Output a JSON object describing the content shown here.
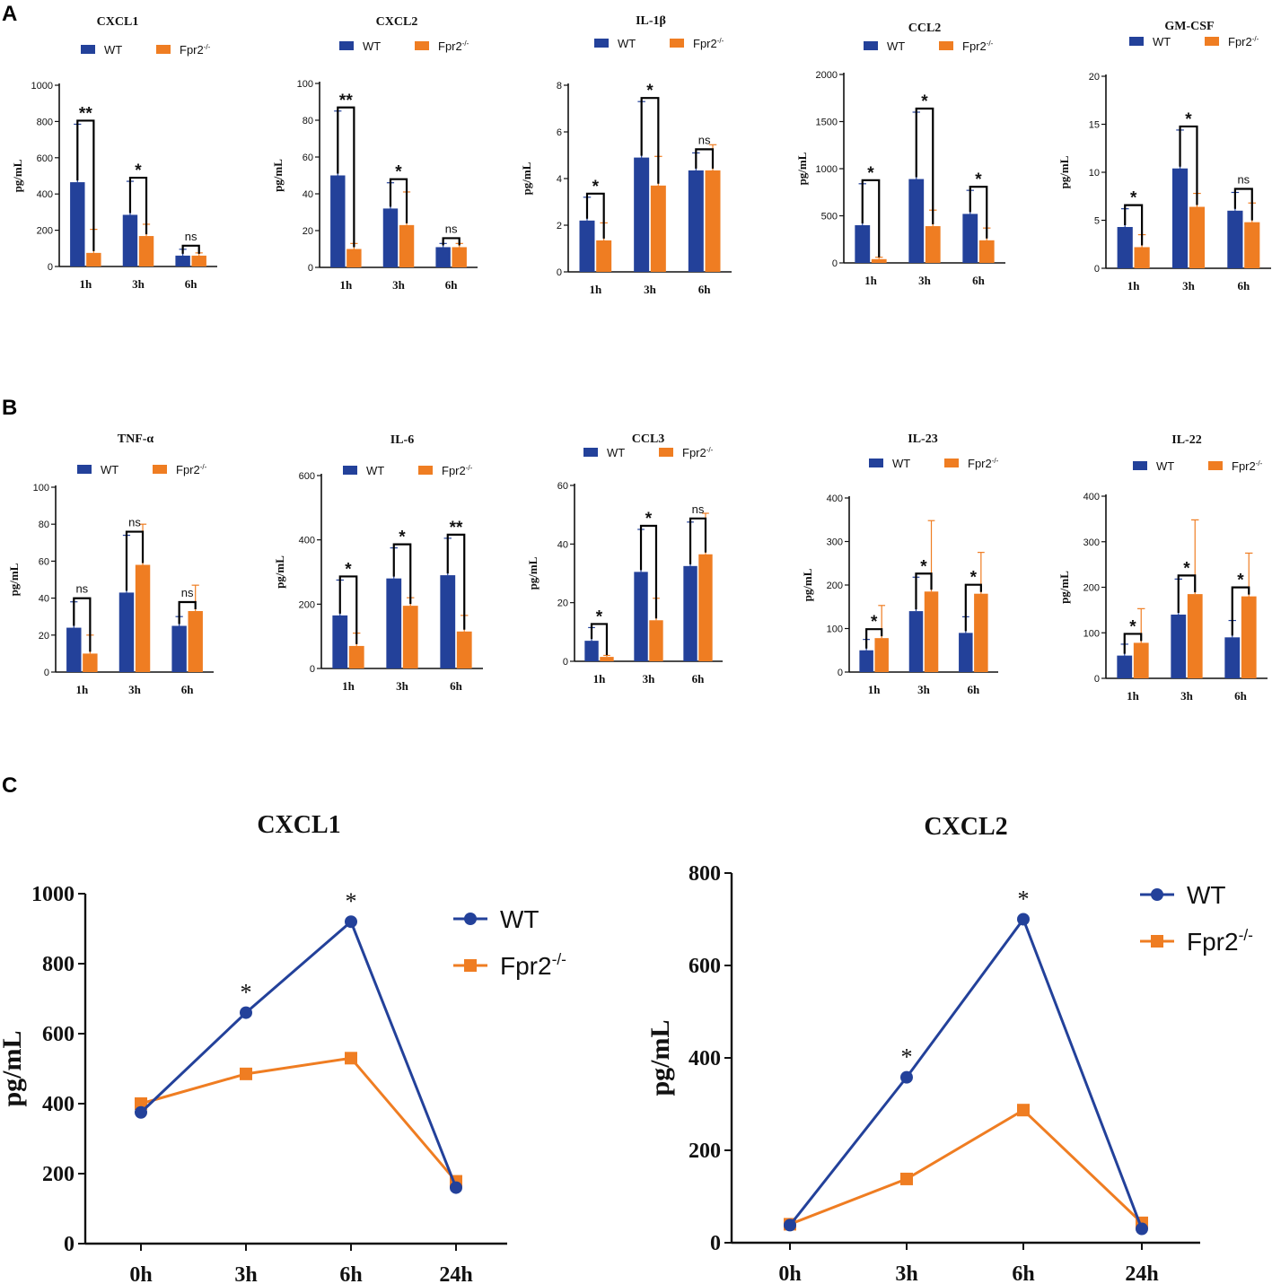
{
  "panels": [
    {
      "label": "A"
    },
    {
      "label": "B"
    },
    {
      "label": "C"
    }
  ],
  "colors": {
    "wt": "#23419A",
    "ko": "#EF7D22",
    "axis": "#111111"
  },
  "chart_data": [
    {
      "type": "bar",
      "panel": "A",
      "title": "CXCL1",
      "ylabel": "pg/mL",
      "categories": [
        "1h",
        "3h",
        "6h"
      ],
      "ylim": [
        0,
        1000
      ],
      "yticks": [
        0,
        200,
        400,
        600,
        800,
        1000
      ],
      "series": [
        {
          "name": "WT",
          "values": [
            465,
            285,
            60
          ],
          "errors": [
            320,
            185,
            35
          ]
        },
        {
          "name": "Fpr2-/-",
          "values": [
            75,
            168,
            60
          ],
          "errors": [
            130,
            65,
            15
          ]
        }
      ],
      "significance": [
        "**",
        "*",
        "ns"
      ]
    },
    {
      "type": "bar",
      "panel": "A",
      "title": "CXCL2",
      "ylabel": "pg/mL",
      "categories": [
        "1h",
        "3h",
        "6h"
      ],
      "ylim": [
        0,
        100
      ],
      "yticks": [
        0,
        20,
        40,
        60,
        80,
        100
      ],
      "series": [
        {
          "name": "WT",
          "values": [
            50,
            32,
            11
          ],
          "errors": [
            35,
            14,
            2
          ]
        },
        {
          "name": "Fpr2-/-",
          "values": [
            10,
            23,
            11
          ],
          "errors": [
            3,
            18,
            2
          ]
        }
      ],
      "significance": [
        "**",
        "*",
        "ns"
      ]
    },
    {
      "type": "bar",
      "panel": "A",
      "title": "IL-1β",
      "ylabel": "pg/mL",
      "categories": [
        "1h",
        "3h",
        "6h"
      ],
      "ylim": [
        0,
        8
      ],
      "yticks": [
        0,
        2,
        4,
        6,
        8
      ],
      "series": [
        {
          "name": "WT",
          "values": [
            2.2,
            4.9,
            4.35
          ],
          "errors": [
            1.0,
            2.4,
            0.75
          ]
        },
        {
          "name": "Fpr2-/-",
          "values": [
            1.35,
            3.7,
            4.35
          ],
          "errors": [
            0.75,
            1.25,
            1.1
          ]
        }
      ],
      "significance": [
        "*",
        "*",
        "ns"
      ]
    },
    {
      "type": "bar",
      "panel": "A",
      "title": "CCL2",
      "ylabel": "pg/mL",
      "categories": [
        "1h",
        "3h",
        "6h"
      ],
      "ylim": [
        0,
        2000
      ],
      "yticks": [
        0,
        500,
        1000,
        1500,
        2000
      ],
      "series": [
        {
          "name": "WT",
          "values": [
            400,
            890,
            520
          ],
          "errors": [
            440,
            710,
            250
          ]
        },
        {
          "name": "Fpr2-/-",
          "values": [
            40,
            390,
            240
          ],
          "errors": [
            20,
            170,
            130
          ]
        }
      ],
      "significance": [
        "*",
        "*",
        "*"
      ]
    },
    {
      "type": "bar",
      "panel": "A",
      "title": "GM-CSF",
      "ylabel": "pg/mL",
      "categories": [
        "1h",
        "3h",
        "6h"
      ],
      "ylim": [
        0,
        20
      ],
      "yticks": [
        0,
        5,
        10,
        15,
        20
      ],
      "series": [
        {
          "name": "WT",
          "values": [
            4.3,
            10.4,
            6.0
          ],
          "errors": [
            1.9,
            4.0,
            1.9
          ]
        },
        {
          "name": "Fpr2-/-",
          "values": [
            2.2,
            6.4,
            4.8
          ],
          "errors": [
            1.3,
            1.4,
            2.0
          ]
        }
      ],
      "significance": [
        "*",
        "*",
        "ns"
      ]
    },
    {
      "type": "bar",
      "panel": "B",
      "title": "TNF-α",
      "ylabel": "pg/mL",
      "categories": [
        "1h",
        "3h",
        "6h"
      ],
      "ylim": [
        0,
        100
      ],
      "yticks": [
        0,
        20,
        40,
        60,
        80,
        100
      ],
      "series": [
        {
          "name": "WT",
          "values": [
            24,
            43,
            25
          ],
          "errors": [
            14,
            31,
            5
          ]
        },
        {
          "name": "Fpr2-/-",
          "values": [
            10,
            58,
            33
          ],
          "errors": [
            10,
            22,
            14
          ]
        }
      ],
      "significance": [
        "ns",
        "ns",
        "ns"
      ]
    },
    {
      "type": "bar",
      "panel": "B",
      "title": "IL-6",
      "ylabel": "pg/mL",
      "categories": [
        "1h",
        "3h",
        "6h"
      ],
      "ylim": [
        0,
        600
      ],
      "yticks": [
        0,
        200,
        400,
        600
      ],
      "series": [
        {
          "name": "WT",
          "values": [
            165,
            280,
            290
          ],
          "errors": [
            110,
            95,
            115
          ]
        },
        {
          "name": "Fpr2-/-",
          "values": [
            70,
            195,
            115
          ],
          "errors": [
            40,
            25,
            50
          ]
        }
      ],
      "significance": [
        "*",
        "*",
        "**"
      ]
    },
    {
      "type": "bar",
      "panel": "B",
      "title": "CCL3",
      "ylabel": "pg/mL",
      "categories": [
        "1h",
        "3h",
        "6h"
      ],
      "ylim": [
        0,
        60
      ],
      "yticks": [
        0,
        20,
        40,
        60
      ],
      "series": [
        {
          "name": "WT",
          "values": [
            7,
            30.5,
            32.5
          ],
          "errors": [
            4.5,
            14.5,
            15
          ]
        },
        {
          "name": "Fpr2-/-",
          "values": [
            1.5,
            14,
            36.5
          ],
          "errors": [
            0.5,
            7.5,
            14
          ]
        }
      ],
      "significance": [
        "*",
        "*",
        "ns"
      ]
    },
    {
      "type": "bar",
      "panel": "B",
      "title": "IL-23",
      "ylabel": "pg/mL",
      "categories": [
        "1h",
        "3h",
        "6h"
      ],
      "ylim": [
        0,
        400
      ],
      "yticks": [
        0,
        100,
        200,
        300,
        400
      ],
      "series": [
        {
          "name": "WT",
          "values": [
            50,
            140,
            90
          ],
          "errors": [
            25,
            78,
            37
          ]
        },
        {
          "name": "Fpr2-/-",
          "values": [
            78,
            185,
            180
          ],
          "errors": [
            75,
            163,
            95
          ]
        }
      ],
      "significance": [
        "*",
        "*",
        "*"
      ]
    },
    {
      "type": "bar",
      "panel": "B",
      "title": "IL-22",
      "ylabel": "pg/mL",
      "categories": [
        "1h",
        "3h",
        "6h"
      ],
      "ylim": [
        0,
        400
      ],
      "yticks": [
        0,
        100,
        200,
        300,
        400
      ],
      "series": [
        {
          "name": "WT",
          "values": [
            50,
            140,
            90
          ],
          "errors": [
            25,
            78,
            37
          ]
        },
        {
          "name": "Fpr2-/-",
          "values": [
            78,
            185,
            180
          ],
          "errors": [
            75,
            163,
            95
          ]
        }
      ],
      "significance": [
        "*",
        "*",
        "*"
      ]
    },
    {
      "type": "line",
      "panel": "C",
      "title": "CXCL1",
      "ylabel": "pg/mL",
      "categories": [
        "0h",
        "3h",
        "6h",
        "24h"
      ],
      "ylim": [
        0,
        1000
      ],
      "yticks": [
        0,
        200,
        400,
        600,
        800,
        1000
      ],
      "series": [
        {
          "name": "WT",
          "values": [
            375,
            660,
            920,
            160
          ]
        },
        {
          "name": "Fpr2-/-",
          "values": [
            400,
            485,
            530,
            178
          ]
        }
      ],
      "significance": [
        "",
        "*",
        "*",
        ""
      ]
    },
    {
      "type": "line",
      "panel": "C",
      "title": "CXCL2",
      "ylabel": "pg/mL",
      "categories": [
        "0h",
        "3h",
        "6h",
        "24h"
      ],
      "ylim": [
        0,
        800
      ],
      "yticks": [
        0,
        200,
        400,
        600,
        800
      ],
      "series": [
        {
          "name": "WT",
          "values": [
            38,
            358,
            700,
            30
          ]
        },
        {
          "name": "Fpr2-/-",
          "values": [
            40,
            138,
            287,
            43
          ]
        }
      ],
      "significance": [
        "",
        "*",
        "*",
        ""
      ]
    }
  ]
}
